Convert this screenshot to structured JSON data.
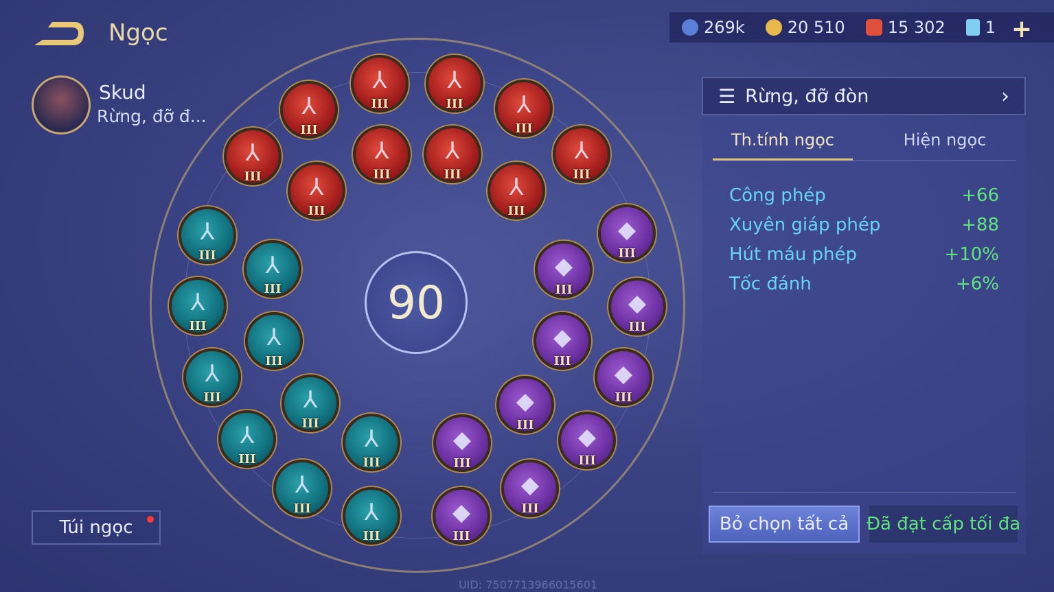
{
  "header": {
    "title": "Ngọc",
    "back_icon": "back-arrow-icon"
  },
  "currencies": [
    {
      "icon": "blue-coin-icon",
      "value": "269k",
      "color": "#5b7fd8"
    },
    {
      "icon": "gold-coin-icon",
      "value": "20 510",
      "color": "#e8b84a"
    },
    {
      "icon": "red-gem-icon",
      "value": "15 302",
      "color": "#e0503a"
    },
    {
      "icon": "card-icon",
      "value": "1",
      "color": "#7fd0f0"
    }
  ],
  "hero": {
    "name": "Skud",
    "role": "Rừng, đỡ đ..."
  },
  "bag": {
    "label": "Túi ngọc",
    "has_notification": true
  },
  "level": "90",
  "gems": {
    "red": {
      "count": 10,
      "tier": "III"
    },
    "teal": {
      "count": 10,
      "tier": "III"
    },
    "purple": {
      "count": 10,
      "tier": "III"
    }
  },
  "preset": {
    "label": "Rừng, đỡ đòn"
  },
  "tabs": [
    {
      "label": "Th.tính ngọc",
      "active": true
    },
    {
      "label": "Hiện ngọc",
      "active": false
    }
  ],
  "stats": [
    {
      "name": "Công phép",
      "value": "+66"
    },
    {
      "name": "Xuyên giáp phép",
      "value": "+88"
    },
    {
      "name": "Hút máu phép",
      "value": "+10%"
    },
    {
      "name": "Tốc đánh",
      "value": "+6%"
    }
  ],
  "buttons": {
    "deselect_all": "Bỏ chọn tất cả",
    "max_level": "Đã đạt cấp tối đa"
  },
  "uid": "UID: 7507713966015601"
}
